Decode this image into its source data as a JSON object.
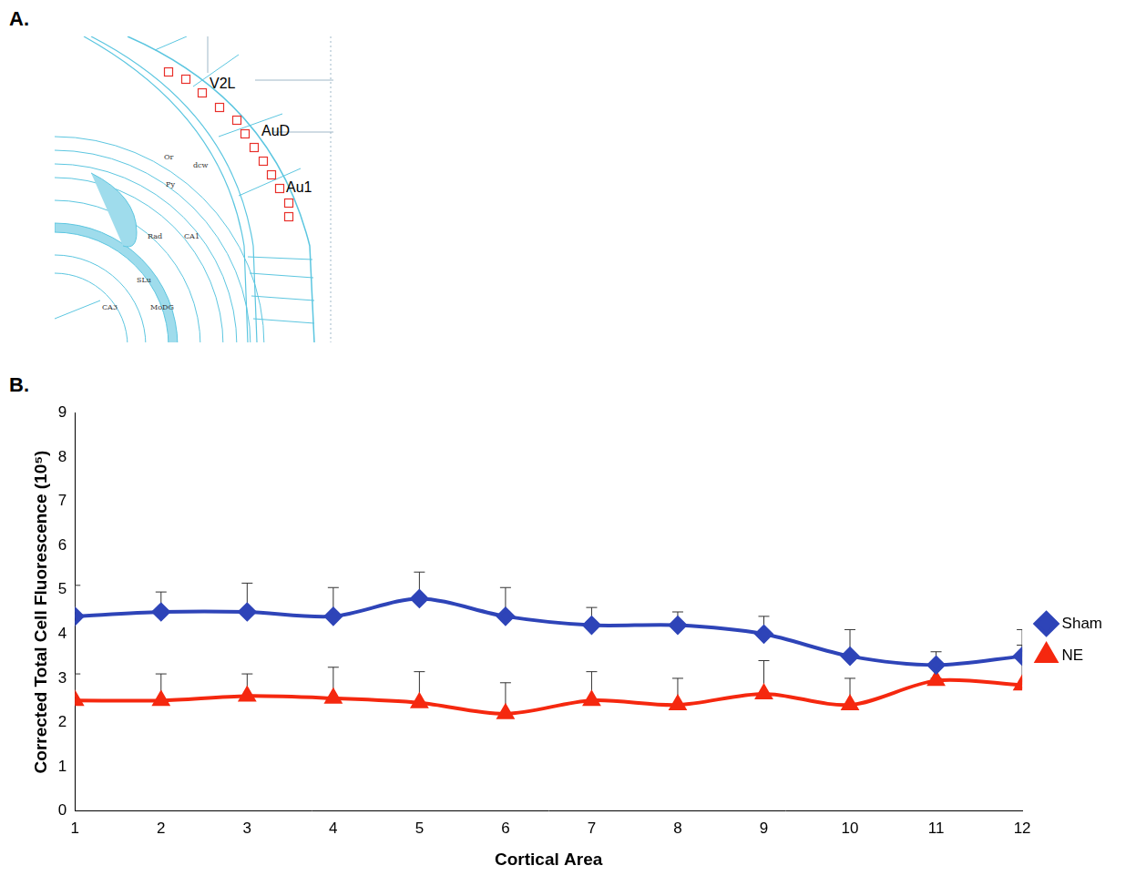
{
  "panel_a": {
    "letter": "A.",
    "region_labels": [
      "V2L",
      "AuD",
      "Au1"
    ],
    "atlas_labels": [
      "Or",
      "dcw",
      "Py",
      "Rad",
      "CA1",
      "SLu",
      "MoDG",
      "CA3"
    ]
  },
  "chart_data": {
    "letter": "B.",
    "type": "line",
    "x_label": "Cortical Area",
    "y_label": "Corrected Total Cell Fluorescence (10⁵)",
    "x": [
      1,
      2,
      3,
      4,
      5,
      6,
      7,
      8,
      9,
      10,
      11,
      12
    ],
    "xlim": [
      1,
      12
    ],
    "xticks": [
      1,
      2,
      3,
      4,
      5,
      6,
      7,
      8,
      9,
      10,
      11,
      12
    ],
    "ylim": [
      0,
      9
    ],
    "yticks": [
      0,
      1,
      2,
      3,
      4,
      5,
      6,
      7,
      8,
      9
    ],
    "grid": false,
    "legend": "right",
    "series": [
      {
        "name": "Sham",
        "color": "#2e44b8",
        "marker": "diamond",
        "values": [
          4.4,
          4.5,
          4.5,
          4.4,
          4.8,
          4.4,
          4.2,
          4.2,
          4.0,
          3.5,
          3.3,
          3.5
        ],
        "errors": [
          0.7,
          0.45,
          0.65,
          0.65,
          0.6,
          0.65,
          0.4,
          0.3,
          0.4,
          0.6,
          0.3,
          0.6
        ]
      },
      {
        "name": "NE",
        "color": "#f5280f",
        "marker": "triangle",
        "values": [
          2.5,
          2.5,
          2.6,
          2.55,
          2.45,
          2.2,
          2.5,
          2.4,
          2.65,
          2.4,
          2.95,
          2.85
        ],
        "errors": [
          0.6,
          0.6,
          0.5,
          0.7,
          0.7,
          0.7,
          0.65,
          0.6,
          0.75,
          0.6,
          0.05,
          0.9
        ]
      }
    ]
  }
}
